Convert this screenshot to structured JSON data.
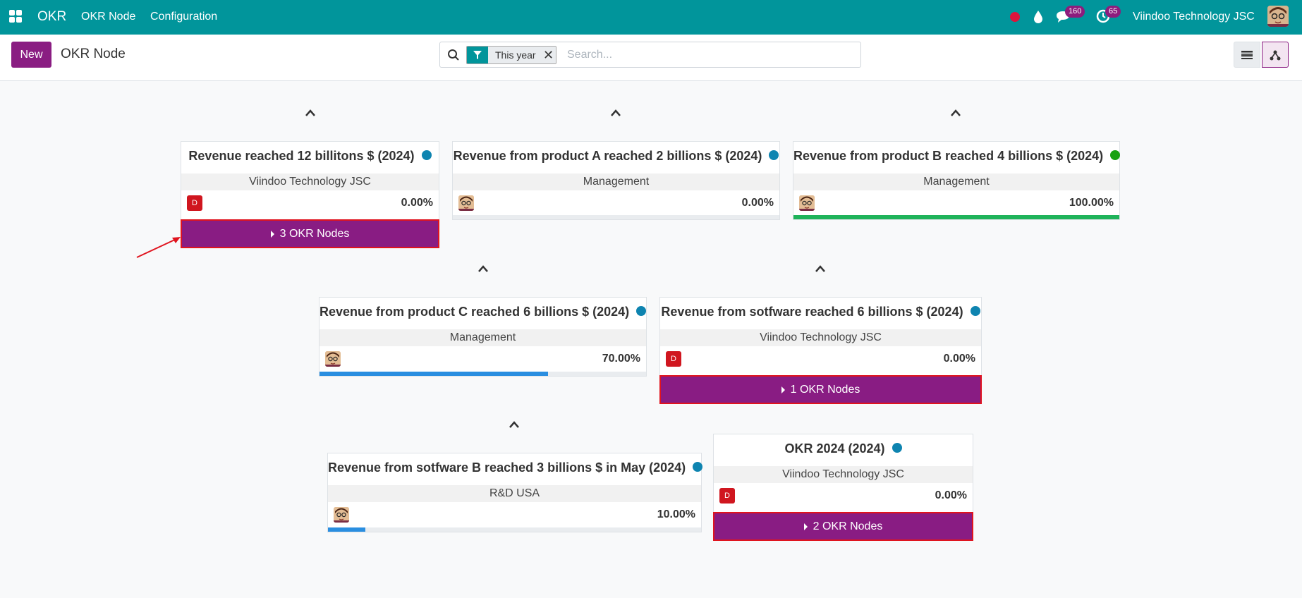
{
  "navbar": {
    "brand": "OKR",
    "menu": [
      "OKR Node",
      "Configuration"
    ],
    "messages_count": "160",
    "activities_count": "65",
    "company": "Viindoo Technology JSC",
    "accent_color": "#01959b"
  },
  "control_panel": {
    "new_label": "New",
    "title": "OKR Node",
    "facet_label": "This year",
    "search_placeholder": "Search..."
  },
  "nodes": [
    {
      "title": "Revenue reached 12 billitons $ (2024)",
      "status_color": "#0e84b0",
      "department": "Viindoo Technology JSC",
      "avatar": "D",
      "progress_text": "0.00%",
      "progress": 0,
      "progress_color": "#2a8ee0",
      "children_label": "3 OKR Nodes"
    },
    {
      "title": "Revenue from product A reached 2 billions $ (2024)",
      "status_color": "#0e84b0",
      "department": "Management",
      "avatar": "face",
      "progress_text": "0.00%",
      "progress": 0,
      "progress_color": "#2a8ee0"
    },
    {
      "title": "Revenue from product B reached 4 billions $ (2024)",
      "status_color": "#18a110",
      "department": "Management",
      "avatar": "face",
      "progress_text": "100.00%",
      "progress": 100,
      "progress_color": "#1fb35a"
    },
    {
      "title": "Revenue from product C reached 6 billions $ (2024)",
      "status_color": "#0e84b0",
      "department": "Management",
      "avatar": "face",
      "progress_text": "70.00%",
      "progress": 70,
      "progress_color": "#2a8ee0"
    },
    {
      "title": "Revenue from sotfware reached 6 billions $ (2024)",
      "status_color": "#0e84b0",
      "department": "Viindoo Technology JSC",
      "avatar": "D",
      "progress_text": "0.00%",
      "progress": 0,
      "progress_color": "#2a8ee0",
      "children_label": "1 OKR Nodes"
    },
    {
      "title": "Revenue from sotfware B reached 3 billions $ in May (2024)",
      "status_color": "#0e84b0",
      "department": "R&D USA",
      "avatar": "face",
      "progress_text": "10.00%",
      "progress": 10,
      "progress_color": "#2a8ee0"
    },
    {
      "title": "OKR 2024 (2024)",
      "status_color": "#0e84b0",
      "department": "Viindoo Technology JSC",
      "avatar": "D",
      "progress_text": "0.00%",
      "progress": 0,
      "progress_color": "#2a8ee0",
      "children_label": "2 OKR Nodes"
    }
  ]
}
